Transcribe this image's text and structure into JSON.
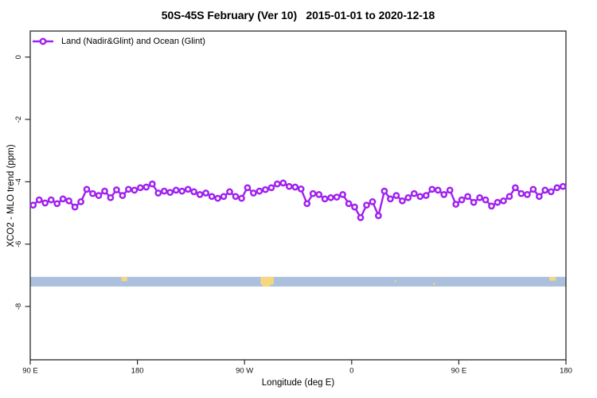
{
  "chart_data": {
    "type": "line",
    "title": "50S-45S February (Ver 10)   2015-01-01 to 2020-12-18",
    "xlabel": "Longitude (deg E)",
    "ylabel": "XCO2 - MLO trend (ppm)",
    "grid": false,
    "x_axis": {
      "range_deg": [
        90,
        540
      ],
      "ticks": [
        {
          "label": "90 E",
          "deg": 90
        },
        {
          "label": "180",
          "deg": 180
        },
        {
          "label": "90 W",
          "deg": 270
        },
        {
          "label": "0",
          "deg": 360
        },
        {
          "label": "90 E",
          "deg": 450
        },
        {
          "label": "180",
          "deg": 540
        }
      ]
    },
    "y_axis": {
      "range_ppm": [
        -9.7,
        0.83
      ],
      "ticks": [
        {
          "label": "0",
          "ppm": 0
        },
        {
          "label": "-2",
          "ppm": -2
        },
        {
          "label": "-4",
          "ppm": -4
        },
        {
          "label": "-6",
          "ppm": -6
        },
        {
          "label": "-8",
          "ppm": -8
        }
      ]
    },
    "legend": {
      "position": "top-left",
      "entries": [
        {
          "label": "Land (Nadir&Glint) and Ocean (Glint)",
          "color": "#a020f0",
          "marker": "open-circle"
        }
      ]
    },
    "series": [
      {
        "name": "Land (Nadir&Glint) and Ocean (Glint)",
        "color": "#a020f0",
        "marker": "open-circle",
        "x_start_deg": 92.5,
        "x_step_deg": 5,
        "values": [
          -4.75,
          -4.58,
          -4.68,
          -4.58,
          -4.7,
          -4.55,
          -4.61,
          -4.81,
          -4.64,
          -4.24,
          -4.38,
          -4.44,
          -4.3,
          -4.51,
          -4.26,
          -4.44,
          -4.24,
          -4.27,
          -4.19,
          -4.17,
          -4.07,
          -4.36,
          -4.3,
          -4.34,
          -4.27,
          -4.3,
          -4.24,
          -4.32,
          -4.41,
          -4.36,
          -4.47,
          -4.53,
          -4.47,
          -4.32,
          -4.47,
          -4.53,
          -4.19,
          -4.36,
          -4.3,
          -4.25,
          -4.19,
          -4.07,
          -4.04,
          -4.15,
          -4.17,
          -4.23,
          -4.7,
          -4.38,
          -4.41,
          -4.55,
          -4.51,
          -4.49,
          -4.41,
          -4.7,
          -4.81,
          -5.15,
          -4.75,
          -4.64,
          -5.09,
          -4.3,
          -4.55,
          -4.44,
          -4.61,
          -4.51,
          -4.38,
          -4.47,
          -4.44,
          -4.24,
          -4.27,
          -4.41,
          -4.27,
          -4.72,
          -4.58,
          -4.47,
          -4.66,
          -4.51,
          -4.58,
          -4.78,
          -4.66,
          -4.61,
          -4.47,
          -4.19,
          -4.38,
          -4.41,
          -4.24,
          -4.47,
          -4.27,
          -4.32,
          -4.19,
          -4.15
        ]
      }
    ],
    "map_strip": {
      "description": "50S-45S latitude band map strip: ocean with land marks",
      "ocean_color": "#abc0dd",
      "land_color": "#f5d87d",
      "ppm_top": -7.05,
      "ppm_bottom": -7.36,
      "land_features": [
        {
          "name": "new-zealand",
          "deg_start": 166.5,
          "deg_end": 171.5,
          "v_start": 0.0,
          "v_end": 0.45
        },
        {
          "name": "patagonia",
          "deg_start": 283.5,
          "deg_end": 294.5,
          "v_start": 0.0,
          "v_end": 0.8
        },
        {
          "name": "patagonia-south",
          "deg_start": 285.0,
          "deg_end": 291.5,
          "v_start": 0.45,
          "v_end": 1.0
        },
        {
          "name": "prince-edward-islands",
          "deg_start": 396.0,
          "deg_end": 397.6,
          "v_start": 0.35,
          "v_end": 0.55
        },
        {
          "name": "kerguelen-islands",
          "deg_start": 428.5,
          "deg_end": 430.1,
          "v_start": 0.6,
          "v_end": 0.85
        },
        {
          "name": "new-zealand-repeat",
          "deg_start": 526.0,
          "deg_end": 531.5,
          "v_start": 0.0,
          "v_end": 0.4
        }
      ]
    }
  }
}
